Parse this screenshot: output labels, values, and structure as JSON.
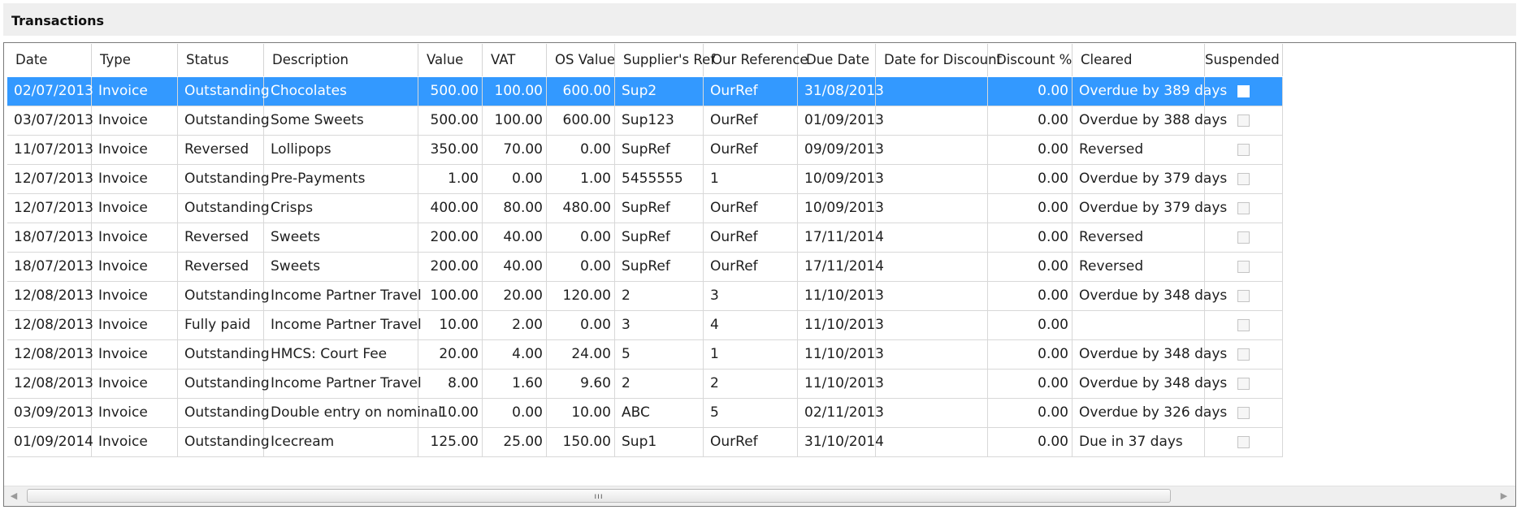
{
  "panel": {
    "title": "Transactions"
  },
  "columns": [
    {
      "key": "date",
      "label": "Date"
    },
    {
      "key": "type",
      "label": "Type"
    },
    {
      "key": "status",
      "label": "Status"
    },
    {
      "key": "description",
      "label": "Description"
    },
    {
      "key": "value",
      "label": "Value"
    },
    {
      "key": "vat",
      "label": "VAT"
    },
    {
      "key": "os_value",
      "label": "OS Value"
    },
    {
      "key": "supplier_ref",
      "label": "Supplier's Ref"
    },
    {
      "key": "our_reference",
      "label": "Our Reference"
    },
    {
      "key": "due_date",
      "label": "Due Date"
    },
    {
      "key": "date_for_discount",
      "label": "Date for Discount"
    },
    {
      "key": "discount_pct",
      "label": "Discount %"
    },
    {
      "key": "cleared",
      "label": "Cleared"
    },
    {
      "key": "suspended",
      "label": "Suspended"
    }
  ],
  "rows": [
    {
      "date": "02/07/2013",
      "type": "Invoice",
      "status": "Outstanding",
      "description": "Chocolates",
      "value": "500.00",
      "vat": "100.00",
      "os_value": "600.00",
      "supplier_ref": "Sup2",
      "our_reference": "OurRef",
      "due_date": "31/08/2013",
      "date_for_discount": "",
      "discount_pct": "0.00",
      "cleared": "Overdue by 389 days",
      "suspended": false,
      "selected": true
    },
    {
      "date": "03/07/2013",
      "type": "Invoice",
      "status": "Outstanding",
      "description": "Some Sweets",
      "value": "500.00",
      "vat": "100.00",
      "os_value": "600.00",
      "supplier_ref": "Sup123",
      "our_reference": "OurRef",
      "due_date": "01/09/2013",
      "date_for_discount": "",
      "discount_pct": "0.00",
      "cleared": "Overdue by 388 days",
      "suspended": false
    },
    {
      "date": "11/07/2013",
      "type": "Invoice",
      "status": "Reversed",
      "description": "Lollipops",
      "value": "350.00",
      "vat": "70.00",
      "os_value": "0.00",
      "supplier_ref": "SupRef",
      "our_reference": "OurRef",
      "due_date": "09/09/2013",
      "date_for_discount": "",
      "discount_pct": "0.00",
      "cleared": "Reversed",
      "suspended": false
    },
    {
      "date": "12/07/2013",
      "type": "Invoice",
      "status": "Outstanding",
      "description": "Pre-Payments",
      "value": "1.00",
      "vat": "0.00",
      "os_value": "1.00",
      "supplier_ref": "5455555",
      "our_reference": "1",
      "due_date": "10/09/2013",
      "date_for_discount": "",
      "discount_pct": "0.00",
      "cleared": "Overdue by 379 days",
      "suspended": false
    },
    {
      "date": "12/07/2013",
      "type": "Invoice",
      "status": "Outstanding",
      "description": "Crisps",
      "value": "400.00",
      "vat": "80.00",
      "os_value": "480.00",
      "supplier_ref": "SupRef",
      "our_reference": "OurRef",
      "due_date": "10/09/2013",
      "date_for_discount": "",
      "discount_pct": "0.00",
      "cleared": "Overdue by 379 days",
      "suspended": false
    },
    {
      "date": "18/07/2013",
      "type": "Invoice",
      "status": "Reversed",
      "description": "Sweets",
      "value": "200.00",
      "vat": "40.00",
      "os_value": "0.00",
      "supplier_ref": "SupRef",
      "our_reference": "OurRef",
      "due_date": "17/11/2014",
      "date_for_discount": "",
      "discount_pct": "0.00",
      "cleared": "Reversed",
      "suspended": false
    },
    {
      "date": "18/07/2013",
      "type": "Invoice",
      "status": "Reversed",
      "description": "Sweets",
      "value": "200.00",
      "vat": "40.00",
      "os_value": "0.00",
      "supplier_ref": "SupRef",
      "our_reference": "OurRef",
      "due_date": "17/11/2014",
      "date_for_discount": "",
      "discount_pct": "0.00",
      "cleared": "Reversed",
      "suspended": false
    },
    {
      "date": "12/08/2013",
      "type": "Invoice",
      "status": "Outstanding",
      "description": "Income Partner Travel",
      "value": "100.00",
      "vat": "20.00",
      "os_value": "120.00",
      "supplier_ref": "2",
      "our_reference": "3",
      "due_date": "11/10/2013",
      "date_for_discount": "",
      "discount_pct": "0.00",
      "cleared": "Overdue by 348 days",
      "suspended": false
    },
    {
      "date": "12/08/2013",
      "type": "Invoice",
      "status": "Fully paid",
      "description": "Income Partner Travel",
      "value": "10.00",
      "vat": "2.00",
      "os_value": "0.00",
      "supplier_ref": "3",
      "our_reference": "4",
      "due_date": "11/10/2013",
      "date_for_discount": "",
      "discount_pct": "0.00",
      "cleared": "",
      "suspended": false
    },
    {
      "date": "12/08/2013",
      "type": "Invoice",
      "status": "Outstanding",
      "description": "HMCS: Court Fee",
      "value": "20.00",
      "vat": "4.00",
      "os_value": "24.00",
      "supplier_ref": "5",
      "our_reference": "1",
      "due_date": "11/10/2013",
      "date_for_discount": "",
      "discount_pct": "0.00",
      "cleared": "Overdue by 348 days",
      "suspended": false
    },
    {
      "date": "12/08/2013",
      "type": "Invoice",
      "status": "Outstanding",
      "description": "Income Partner Travel",
      "value": "8.00",
      "vat": "1.60",
      "os_value": "9.60",
      "supplier_ref": "2",
      "our_reference": "2",
      "due_date": "11/10/2013",
      "date_for_discount": "",
      "discount_pct": "0.00",
      "cleared": "Overdue by 348 days",
      "suspended": false
    },
    {
      "date": "03/09/2013",
      "type": "Invoice",
      "status": "Outstanding",
      "description": "Double entry on nominal",
      "value": "10.00",
      "vat": "0.00",
      "os_value": "10.00",
      "supplier_ref": "ABC",
      "our_reference": "5",
      "due_date": "02/11/2013",
      "date_for_discount": "",
      "discount_pct": "0.00",
      "cleared": "Overdue by 326 days",
      "suspended": false
    },
    {
      "date": "01/09/2014",
      "type": "Invoice",
      "status": "Outstanding",
      "description": "Icecream",
      "value": "125.00",
      "vat": "25.00",
      "os_value": "150.00",
      "supplier_ref": "Sup1",
      "our_reference": "OurRef",
      "due_date": "31/10/2014",
      "date_for_discount": "",
      "discount_pct": "0.00",
      "cleared": "Due in 37 days",
      "suspended": false
    }
  ],
  "scrollbar": {
    "left_arrow_icon": "scroll-left-icon",
    "right_arrow_icon": "scroll-right-icon",
    "grip": "ııı"
  }
}
